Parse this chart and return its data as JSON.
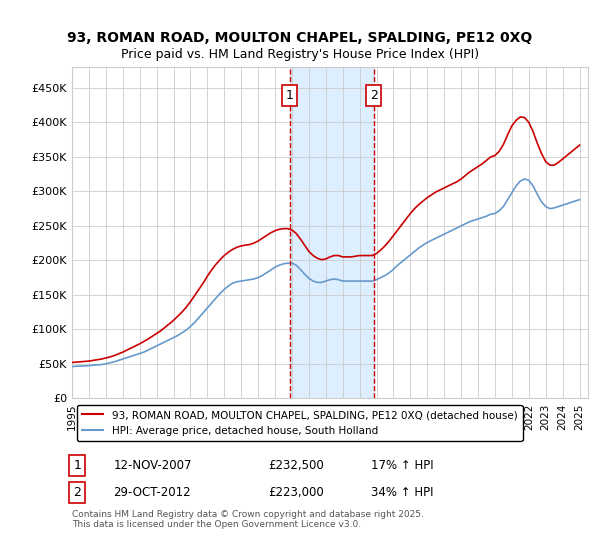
{
  "title_line1": "93, ROMAN ROAD, MOULTON CHAPEL, SPALDING, PE12 0XQ",
  "title_line2": "Price paid vs. HM Land Registry's House Price Index (HPI)",
  "ylabel_ticks": [
    "£0",
    "£50K",
    "£100K",
    "£150K",
    "£200K",
    "£250K",
    "£300K",
    "£350K",
    "£400K",
    "£450K"
  ],
  "ylabel_values": [
    0,
    50000,
    100000,
    150000,
    200000,
    250000,
    300000,
    350000,
    400000,
    450000
  ],
  "ylim": [
    0,
    480000
  ],
  "xlim_start": 1995.0,
  "xlim_end": 2025.5,
  "xtick_years": [
    1995,
    1996,
    1997,
    1998,
    1999,
    2000,
    2001,
    2002,
    2003,
    2004,
    2005,
    2006,
    2007,
    2008,
    2009,
    2010,
    2011,
    2012,
    2013,
    2014,
    2015,
    2016,
    2017,
    2018,
    2019,
    2020,
    2021,
    2022,
    2023,
    2024,
    2025
  ],
  "marker1_x": 2007.87,
  "marker1_label": "1",
  "marker2_x": 2012.83,
  "marker2_label": "2",
  "shade_xmin": 2007.87,
  "shade_xmax": 2012.83,
  "red_color": "#cc0000",
  "blue_color": "#6699cc",
  "shade_color": "#ddeeff",
  "marker_box_color": "#cc0000",
  "legend_entry1": "93, ROMAN ROAD, MOULTON CHAPEL, SPALDING, PE12 0XQ (detached house)",
  "legend_entry2": "HPI: Average price, detached house, South Holland",
  "table_row1": [
    "1",
    "12-NOV-2007",
    "£232,500",
    "17% ↑ HPI"
  ],
  "table_row2": [
    "2",
    "29-OCT-2012",
    "£223,000",
    "34% ↑ HPI"
  ],
  "footnote": "Contains HM Land Registry data © Crown copyright and database right 2025.\nThis data is licensed under the Open Government Licence v3.0.",
  "hpi_data_x": [
    1995.0,
    1995.25,
    1995.5,
    1995.75,
    1996.0,
    1996.25,
    1996.5,
    1996.75,
    1997.0,
    1997.25,
    1997.5,
    1997.75,
    1998.0,
    1998.25,
    1998.5,
    1998.75,
    1999.0,
    1999.25,
    1999.5,
    1999.75,
    2000.0,
    2000.25,
    2000.5,
    2000.75,
    2001.0,
    2001.25,
    2001.5,
    2001.75,
    2002.0,
    2002.25,
    2002.5,
    2002.75,
    2003.0,
    2003.25,
    2003.5,
    2003.75,
    2004.0,
    2004.25,
    2004.5,
    2004.75,
    2005.0,
    2005.25,
    2005.5,
    2005.75,
    2006.0,
    2006.25,
    2006.5,
    2006.75,
    2007.0,
    2007.25,
    2007.5,
    2007.75,
    2008.0,
    2008.25,
    2008.5,
    2008.75,
    2009.0,
    2009.25,
    2009.5,
    2009.75,
    2010.0,
    2010.25,
    2010.5,
    2010.75,
    2011.0,
    2011.25,
    2011.5,
    2011.75,
    2012.0,
    2012.25,
    2012.5,
    2012.75,
    2013.0,
    2013.25,
    2013.5,
    2013.75,
    2014.0,
    2014.25,
    2014.5,
    2014.75,
    2015.0,
    2015.25,
    2015.5,
    2015.75,
    2016.0,
    2016.25,
    2016.5,
    2016.75,
    2017.0,
    2017.25,
    2017.5,
    2017.75,
    2018.0,
    2018.25,
    2018.5,
    2018.75,
    2019.0,
    2019.25,
    2019.5,
    2019.75,
    2020.0,
    2020.25,
    2020.5,
    2020.75,
    2021.0,
    2021.25,
    2021.5,
    2021.75,
    2022.0,
    2022.25,
    2022.5,
    2022.75,
    2023.0,
    2023.25,
    2023.5,
    2023.75,
    2024.0,
    2024.25,
    2024.5,
    2024.75,
    2025.0
  ],
  "hpi_data_y": [
    46000,
    46500,
    46800,
    47000,
    47500,
    48000,
    48500,
    49000,
    50000,
    51500,
    53000,
    55000,
    57000,
    59000,
    61000,
    63000,
    65000,
    67000,
    70000,
    73000,
    76000,
    79000,
    82000,
    85000,
    88000,
    91000,
    95000,
    99000,
    104000,
    110000,
    117000,
    124000,
    131000,
    138000,
    145000,
    152000,
    158000,
    163000,
    167000,
    169000,
    170000,
    171000,
    172000,
    173000,
    175000,
    178000,
    182000,
    186000,
    190000,
    193000,
    195000,
    196000,
    196000,
    193000,
    187000,
    180000,
    174000,
    170000,
    168000,
    168000,
    170000,
    172000,
    173000,
    172000,
    170000,
    170000,
    170000,
    170000,
    170000,
    170000,
    170000,
    170000,
    172000,
    175000,
    178000,
    182000,
    187000,
    193000,
    198000,
    203000,
    208000,
    213000,
    218000,
    222000,
    226000,
    229000,
    232000,
    235000,
    238000,
    241000,
    244000,
    247000,
    250000,
    253000,
    256000,
    258000,
    260000,
    262000,
    264000,
    267000,
    268000,
    272000,
    278000,
    288000,
    298000,
    308000,
    315000,
    318000,
    316000,
    308000,
    296000,
    285000,
    278000,
    275000,
    276000,
    278000,
    280000,
    282000,
    284000,
    286000,
    288000
  ],
  "red_data_x": [
    1995.0,
    1995.25,
    1995.5,
    1995.75,
    1996.0,
    1996.25,
    1996.5,
    1996.75,
    1997.0,
    1997.25,
    1997.5,
    1997.75,
    1998.0,
    1998.25,
    1998.5,
    1998.75,
    1999.0,
    1999.25,
    1999.5,
    1999.75,
    2000.0,
    2000.25,
    2000.5,
    2000.75,
    2001.0,
    2001.25,
    2001.5,
    2001.75,
    2002.0,
    2002.25,
    2002.5,
    2002.75,
    2003.0,
    2003.25,
    2003.5,
    2003.75,
    2004.0,
    2004.25,
    2004.5,
    2004.75,
    2005.0,
    2005.25,
    2005.5,
    2005.75,
    2006.0,
    2006.25,
    2006.5,
    2006.75,
    2007.0,
    2007.25,
    2007.5,
    2007.75,
    2008.0,
    2008.25,
    2008.5,
    2008.75,
    2009.0,
    2009.25,
    2009.5,
    2009.75,
    2010.0,
    2010.25,
    2010.5,
    2010.75,
    2011.0,
    2011.25,
    2011.5,
    2011.75,
    2012.0,
    2012.25,
    2012.5,
    2012.75,
    2013.0,
    2013.25,
    2013.5,
    2013.75,
    2014.0,
    2014.25,
    2014.5,
    2014.75,
    2015.0,
    2015.25,
    2015.5,
    2015.75,
    2016.0,
    2016.25,
    2016.5,
    2016.75,
    2017.0,
    2017.25,
    2017.5,
    2017.75,
    2018.0,
    2018.25,
    2018.5,
    2018.75,
    2019.0,
    2019.25,
    2019.5,
    2019.75,
    2020.0,
    2020.25,
    2020.5,
    2020.75,
    2021.0,
    2021.25,
    2021.5,
    2021.75,
    2022.0,
    2022.25,
    2022.5,
    2022.75,
    2023.0,
    2023.25,
    2023.5,
    2023.75,
    2024.0,
    2024.25,
    2024.5,
    2024.75,
    2025.0
  ],
  "red_data_y": [
    52000,
    52500,
    53000,
    53500,
    54000,
    55000,
    56000,
    57000,
    58500,
    60000,
    62000,
    64500,
    67000,
    70000,
    73000,
    76000,
    79000,
    82500,
    86000,
    90000,
    94000,
    98000,
    103000,
    108000,
    113000,
    119000,
    125000,
    132000,
    140000,
    149000,
    158000,
    167000,
    177000,
    186000,
    194000,
    201000,
    207000,
    212000,
    216000,
    219000,
    221000,
    222000,
    223000,
    225000,
    228000,
    232000,
    236000,
    240000,
    243000,
    245000,
    246000,
    246000,
    244000,
    239000,
    231000,
    222000,
    213000,
    207000,
    203000,
    201000,
    202000,
    205000,
    207000,
    207000,
    205000,
    205000,
    205000,
    206000,
    207000,
    207000,
    207000,
    207000,
    210000,
    215000,
    221000,
    228000,
    236000,
    244000,
    252000,
    260000,
    268000,
    275000,
    281000,
    286000,
    291000,
    295000,
    299000,
    302000,
    305000,
    308000,
    311000,
    314000,
    318000,
    323000,
    328000,
    332000,
    336000,
    340000,
    345000,
    350000,
    352000,
    358000,
    368000,
    382000,
    395000,
    403000,
    408000,
    407000,
    400000,
    387000,
    370000,
    355000,
    343000,
    338000,
    338000,
    342000,
    347000,
    352000,
    357000,
    362000,
    367000
  ]
}
